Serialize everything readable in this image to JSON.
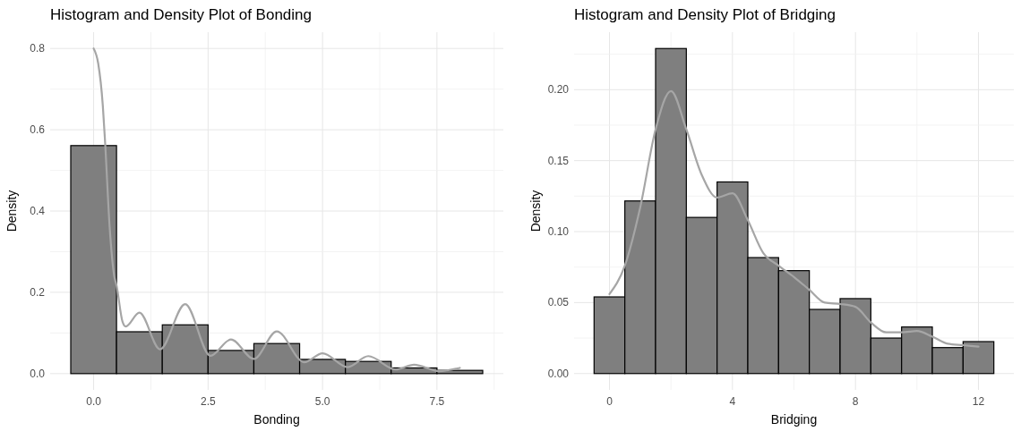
{
  "chart_data": [
    {
      "type": "histogram",
      "title": "Histogram and Density Plot of Bonding",
      "xlabel": "Bonding",
      "ylabel": "Density",
      "bins": [
        -0.5,
        0.5,
        1.5,
        2.5,
        3.5,
        4.5,
        5.5,
        6.5,
        7.5,
        8.5
      ],
      "xlim": [
        -0.95,
        8.95
      ],
      "ylim": [
        -0.04,
        0.84
      ],
      "xticks": [
        {
          "value": 0,
          "label": "0.0"
        },
        2.5,
        {
          "value": 5,
          "label": "5.0"
        },
        7.5
      ],
      "yticks": [
        {
          "value": 0,
          "label": "0.0"
        },
        0.2,
        0.4,
        0.6,
        0.8
      ],
      "grid": true,
      "series": [
        {
          "color": "#7f7f7f",
          "values": [
            0.561,
            0.103,
            0.12,
            0.057,
            0.074,
            0.035,
            0.03,
            0.014,
            0.008
          ]
        },
        {
          "type": "line",
          "color": "#a6a6a6",
          "x": [
            0,
            0.1,
            0.2,
            0.25,
            0.35,
            0.45,
            0.5,
            0.63,
            0.7,
            1,
            1.45,
            2,
            2.55,
            3,
            3.5,
            4,
            4.6,
            5,
            5.55,
            6,
            6.6,
            7,
            7.55,
            8
          ],
          "values": [
            0.8,
            0.763,
            0.66,
            0.57,
            0.36,
            0.24,
            0.217,
            0.128,
            0.116,
            0.15,
            0.06,
            0.171,
            0.044,
            0.084,
            0.036,
            0.104,
            0.028,
            0.05,
            0.016,
            0.043,
            0.01,
            0.022,
            0.006,
            0.014
          ]
        }
      ]
    },
    {
      "type": "histogram",
      "title": "Histogram and Density Plot of Bridging",
      "xlabel": "Bridging",
      "ylabel": "Density",
      "bins": [
        -0.5,
        0.5,
        1.5,
        2.5,
        3.5,
        4.5,
        5.5,
        6.5,
        7.5,
        8.5,
        9.5,
        10.5,
        11.5,
        12.5
      ],
      "xlim": [
        -1.15,
        13.15
      ],
      "ylim": [
        -0.0115,
        0.2405
      ],
      "xticks": [
        0,
        4,
        8,
        12
      ],
      "yticks": [
        {
          "value": 0,
          "label": "0.00"
        },
        0.05,
        {
          "value": 0.1,
          "label": "0.10"
        },
        0.15,
        {
          "value": 0.2,
          "label": "0.20"
        }
      ],
      "grid": true,
      "series": [
        {
          "color": "#7f7f7f",
          "values": [
            0.054,
            0.1216,
            0.229,
            0.11,
            0.135,
            0.0817,
            0.0725,
            0.0452,
            0.0528,
            0.025,
            0.0328,
            0.0183,
            0.0225
          ]
        },
        {
          "type": "line",
          "color": "#a6a6a6",
          "x": [
            0,
            0.5,
            1,
            1.5,
            2,
            2.5,
            3,
            3.5,
            4,
            4.5,
            5,
            5.5,
            6,
            6.5,
            7,
            7.5,
            8,
            8.5,
            9,
            9.5,
            10,
            10.5,
            11,
            11.5,
            12
          ],
          "values": [
            0.056,
            0.076,
            0.117,
            0.172,
            0.199,
            0.172,
            0.14,
            0.124,
            0.127,
            0.108,
            0.085,
            0.076,
            0.068,
            0.059,
            0.05,
            0.049,
            0.047,
            0.036,
            0.029,
            0.029,
            0.03,
            0.026,
            0.021,
            0.02,
            0.019
          ]
        }
      ]
    }
  ]
}
